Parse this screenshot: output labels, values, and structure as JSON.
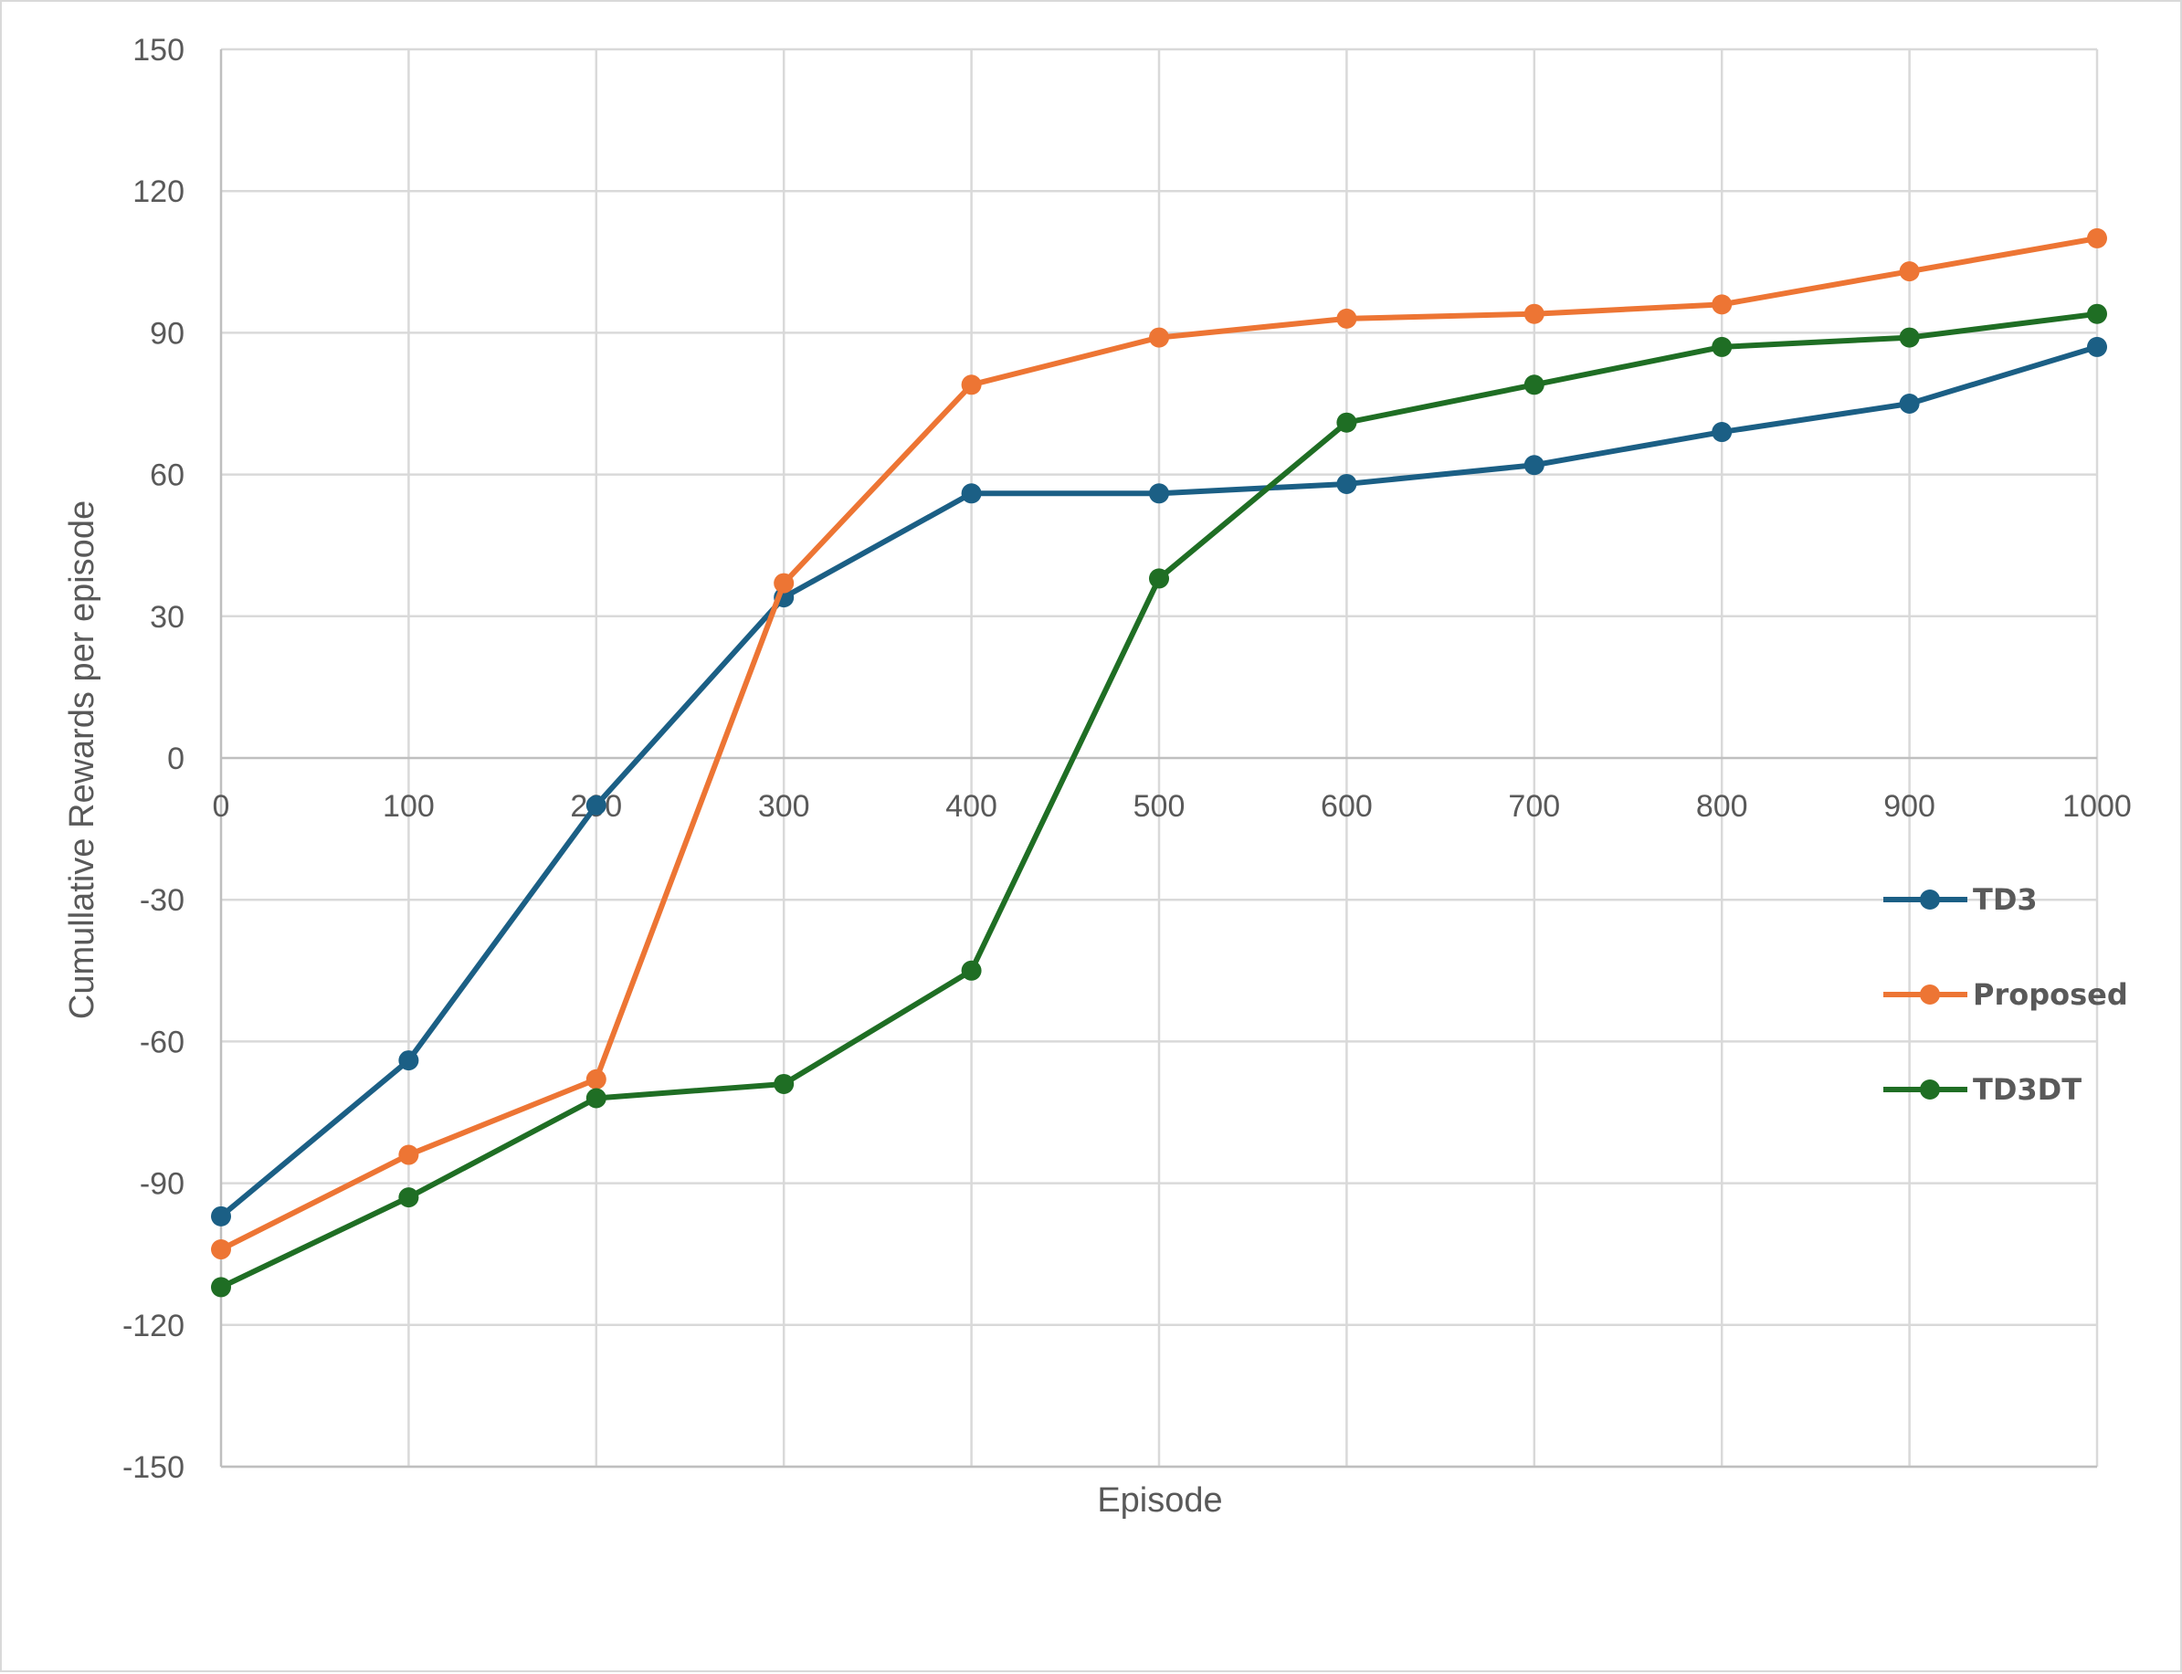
{
  "chart_data": {
    "type": "line",
    "title": "",
    "xlabel": "Episode",
    "ylabel": "Cumullative Rewards per episode",
    "x": [
      0,
      100,
      200,
      300,
      400,
      500,
      600,
      700,
      800,
      900,
      1000
    ],
    "xlim": [
      0,
      1000
    ],
    "ylim": [
      -150,
      150
    ],
    "x_ticks": [
      "0",
      "100",
      "200",
      "300",
      "400",
      "500",
      "600",
      "700",
      "800",
      "900",
      "1000"
    ],
    "y_ticks": [
      "150",
      "120",
      "90",
      "60",
      "30",
      "0",
      "-30",
      "-60",
      "-90",
      "-120",
      "-150"
    ],
    "grid": true,
    "legend_position": "right",
    "series": [
      {
        "name": "TD3",
        "color": "#1b5f85",
        "values": [
          -97,
          -64,
          -10,
          34,
          56,
          56,
          58,
          62,
          69,
          75,
          87
        ]
      },
      {
        "name": "Proposed",
        "color": "#ed7534",
        "values": [
          -104,
          -84,
          -68,
          37,
          79,
          89,
          93,
          94,
          96,
          103,
          110
        ]
      },
      {
        "name": "TD3DT",
        "color": "#1f6e24",
        "values": [
          -112,
          -93,
          -72,
          -69,
          -45,
          38,
          71,
          79,
          87,
          89,
          94
        ]
      }
    ]
  }
}
